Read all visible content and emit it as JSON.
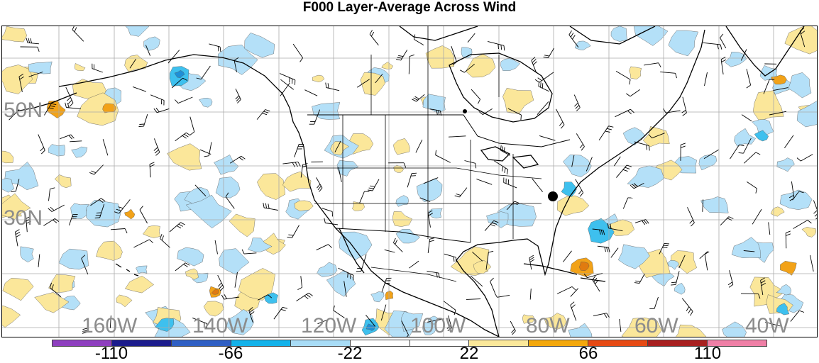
{
  "title": "F000 Layer-Average Across Wind",
  "latitude_labels": [
    "50N",
    "30N"
  ],
  "longitude_labels": [
    "160W",
    "140W",
    "120W",
    "100W",
    "80W",
    "60W",
    "40W"
  ],
  "colorbar": {
    "colors": [
      "#8e3fbf",
      "#1c1c8c",
      "#2f5fc4",
      "#13b2ea",
      "#a8dcf6",
      "#ffffff",
      "#ffffff",
      "#fbe89a",
      "#f4a80c",
      "#e64a14",
      "#a82020",
      "#ef7fa6"
    ],
    "labels": [
      "-110",
      "-66",
      "-22",
      "22",
      "66",
      "110"
    ]
  },
  "fill_colors": {
    "light_blue": "#b4e0f8",
    "mid_blue": "#3ec0ee",
    "dark_blue": "#1f8fd6",
    "light_yellow": "#fbe79a",
    "orange": "#f2a218",
    "dark_orange": "#e07b10"
  },
  "marker_color": "#000000"
}
